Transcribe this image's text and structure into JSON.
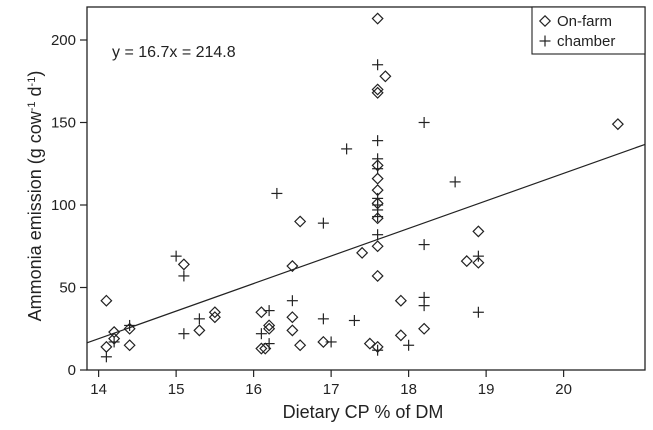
{
  "chart_data": {
    "type": "scatter",
    "xlabel": "Dietary CP % of DM",
    "ylabel_main": "Ammonia emission (g cow",
    "ylabel_sup1": "-1",
    "ylabel_mid": " d",
    "ylabel_sup2": "-1",
    "ylabel_end": ")",
    "xlim": [
      13.85,
      21.05
    ],
    "ylim": [
      0,
      220
    ],
    "x_ticks": [
      14,
      15,
      16,
      17,
      18,
      19,
      20
    ],
    "y_ticks": [
      0,
      50,
      100,
      150,
      200
    ],
    "annotation": "y = 16.7x = 214.8",
    "regression": {
      "slope": 16.7,
      "intercept": -214.8
    },
    "legend": {
      "position": "top-right"
    },
    "series": [
      {
        "name": "On-farm",
        "marker": "diamond",
        "points": [
          [
            14.1,
            42
          ],
          [
            14.1,
            14
          ],
          [
            14.2,
            19
          ],
          [
            14.2,
            23
          ],
          [
            14.4,
            25
          ],
          [
            14.4,
            15
          ],
          [
            15.1,
            64
          ],
          [
            15.3,
            24
          ],
          [
            15.5,
            35
          ],
          [
            15.5,
            32
          ],
          [
            16.1,
            35
          ],
          [
            16.1,
            13
          ],
          [
            16.15,
            13
          ],
          [
            16.2,
            25
          ],
          [
            16.2,
            27
          ],
          [
            16.5,
            63
          ],
          [
            16.5,
            32
          ],
          [
            16.5,
            24
          ],
          [
            16.6,
            90
          ],
          [
            16.6,
            15
          ],
          [
            16.9,
            17
          ],
          [
            17.4,
            71
          ],
          [
            17.5,
            16
          ],
          [
            17.6,
            213
          ],
          [
            17.6,
            170
          ],
          [
            17.6,
            168
          ],
          [
            17.6,
            124
          ],
          [
            17.6,
            116
          ],
          [
            17.6,
            109
          ],
          [
            17.6,
            101
          ],
          [
            17.6,
            92
          ],
          [
            17.6,
            75
          ],
          [
            17.6,
            57
          ],
          [
            17.6,
            14
          ],
          [
            17.7,
            178
          ],
          [
            17.9,
            42
          ],
          [
            17.9,
            21
          ],
          [
            18.2,
            25
          ],
          [
            18.75,
            66
          ],
          [
            18.9,
            84
          ],
          [
            18.9,
            65
          ],
          [
            20.7,
            149
          ]
        ]
      },
      {
        "name": "chamber",
        "marker": "plus",
        "points": [
          [
            14.1,
            8
          ],
          [
            14.2,
            17
          ],
          [
            14.4,
            27
          ],
          [
            15.0,
            69
          ],
          [
            15.1,
            57
          ],
          [
            15.1,
            22
          ],
          [
            15.3,
            31
          ],
          [
            16.1,
            22
          ],
          [
            16.2,
            36
          ],
          [
            16.2,
            16
          ],
          [
            16.3,
            107
          ],
          [
            16.5,
            42
          ],
          [
            16.9,
            89
          ],
          [
            16.9,
            31
          ],
          [
            17.0,
            17
          ],
          [
            17.2,
            134
          ],
          [
            17.3,
            30
          ],
          [
            17.6,
            185
          ],
          [
            17.6,
            139
          ],
          [
            17.6,
            128
          ],
          [
            17.6,
            122
          ],
          [
            17.6,
            104
          ],
          [
            17.6,
            100
          ],
          [
            17.6,
            97
          ],
          [
            17.6,
            93
          ],
          [
            17.6,
            82
          ],
          [
            17.6,
            12
          ],
          [
            18.0,
            15
          ],
          [
            18.2,
            150
          ],
          [
            18.2,
            76
          ],
          [
            18.2,
            44
          ],
          [
            18.2,
            39
          ],
          [
            18.6,
            114
          ],
          [
            18.9,
            69
          ],
          [
            18.9,
            35
          ]
        ]
      }
    ]
  }
}
